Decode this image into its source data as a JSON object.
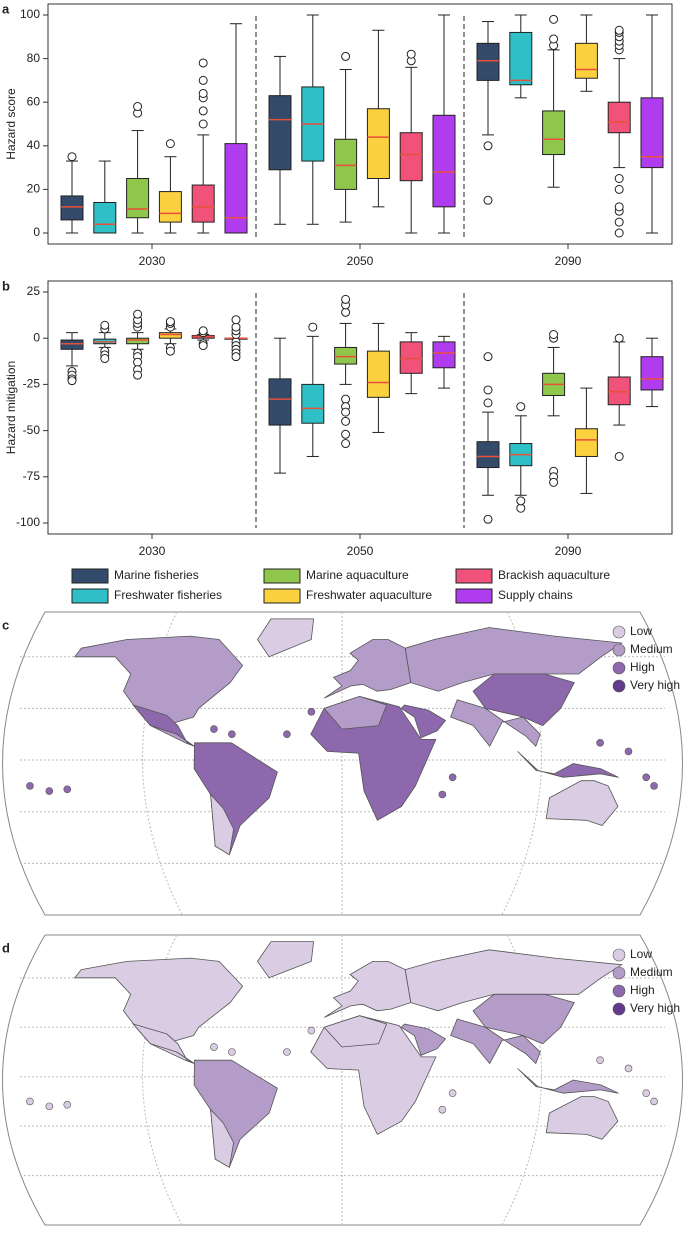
{
  "chart_data": [
    {
      "type": "box",
      "label": "a",
      "ylabel": "Hazard score",
      "categories": [
        "2030",
        "2050",
        "2090"
      ],
      "ylim": [
        0,
        100
      ],
      "yticks": [
        0,
        20,
        40,
        60,
        80,
        100
      ],
      "median_color": "#e8503a",
      "series": [
        {
          "name": "Marine fisheries",
          "color": "#344a6b",
          "boxes": [
            {
              "low": 0,
              "q1": 6,
              "median": 12,
              "q3": 17,
              "high": 33,
              "outliers": [
                35
              ]
            },
            {
              "low": 4,
              "q1": 29,
              "median": 52,
              "q3": 63,
              "high": 81,
              "outliers": []
            },
            {
              "low": 45,
              "q1": 70,
              "median": 79,
              "q3": 87,
              "high": 97,
              "outliers": [
                40,
                15
              ]
            }
          ]
        },
        {
          "name": "Freshwater fisheries",
          "color": "#2fbfc6",
          "boxes": [
            {
              "low": 0,
              "q1": 0,
              "median": 4,
              "q3": 14,
              "high": 33,
              "outliers": []
            },
            {
              "low": 4,
              "q1": 33,
              "median": 50,
              "q3": 67,
              "high": 100,
              "outliers": []
            },
            {
              "low": 62,
              "q1": 68,
              "median": 70,
              "q3": 92,
              "high": 100,
              "outliers": []
            }
          ]
        },
        {
          "name": "Marine aquaculture",
          "color": "#8fc64c",
          "boxes": [
            {
              "low": 0,
              "q1": 7,
              "median": 11,
              "q3": 25,
              "high": 47,
              "outliers": [
                55,
                58
              ]
            },
            {
              "low": 5,
              "q1": 20,
              "median": 31,
              "q3": 43,
              "high": 75,
              "outliers": [
                81
              ]
            },
            {
              "low": 21,
              "q1": 36,
              "median": 43,
              "q3": 56,
              "high": 84,
              "outliers": [
                86,
                89,
                98
              ]
            }
          ]
        },
        {
          "name": "Freshwater aquaculture",
          "color": "#fbd13f",
          "boxes": [
            {
              "low": 0,
              "q1": 5,
              "median": 9,
              "q3": 19,
              "high": 35,
              "outliers": [
                41
              ]
            },
            {
              "low": 12,
              "q1": 25,
              "median": 44,
              "q3": 57,
              "high": 93,
              "outliers": []
            },
            {
              "low": 65,
              "q1": 71,
              "median": 75,
              "q3": 87,
              "high": 100,
              "outliers": []
            }
          ]
        },
        {
          "name": "Brackish aquaculture",
          "color": "#f0527a",
          "boxes": [
            {
              "low": 0,
              "q1": 5,
              "median": 12,
              "q3": 22,
              "high": 45,
              "outliers": [
                50,
                56,
                62,
                64,
                70,
                78
              ]
            },
            {
              "low": 0,
              "q1": 24,
              "median": 36,
              "q3": 46,
              "high": 76,
              "outliers": [
                79,
                82
              ]
            },
            {
              "low": 30,
              "q1": 46,
              "median": 51,
              "q3": 60,
              "high": 80,
              "outliers": [
                0,
                5,
                10,
                12,
                20,
                25,
                84,
                86,
                88,
                90,
                92,
                93
              ]
            }
          ]
        },
        {
          "name": "Supply chains",
          "color": "#b03cf0",
          "boxes": [
            {
              "low": 0,
              "q1": 0,
              "median": 7,
              "q3": 41,
              "high": 96,
              "outliers": []
            },
            {
              "low": 0,
              "q1": 12,
              "median": 28,
              "q3": 54,
              "high": 100,
              "outliers": []
            },
            {
              "low": 0,
              "q1": 30,
              "median": 35,
              "q3": 62,
              "high": 100,
              "outliers": []
            }
          ]
        }
      ]
    },
    {
      "type": "box",
      "label": "b",
      "ylabel": "Hazard mitigation",
      "categories": [
        "2030",
        "2050",
        "2090"
      ],
      "ylim": [
        -100,
        25
      ],
      "yticks": [
        -100,
        -75,
        -50,
        -25,
        0,
        25
      ],
      "median_color": "#e8503a",
      "series": [
        {
          "color": "#344a6b",
          "boxes": [
            {
              "low": -15,
              "q1": -6,
              "median": -3,
              "q3": -1,
              "high": 3,
              "outliers": [
                -18,
                -20,
                -22,
                -23
              ]
            },
            {
              "low": -73,
              "q1": -47,
              "median": -33,
              "q3": -22,
              "high": 0,
              "outliers": []
            },
            {
              "low": -85,
              "q1": -70,
              "median": -64,
              "q3": -56,
              "high": -40,
              "outliers": [
                -98,
                -35,
                -28,
                -10
              ]
            }
          ]
        },
        {
          "color": "#2fbfc6",
          "boxes": [
            {
              "low": -5,
              "q1": -3,
              "median": -2,
              "q3": -0.5,
              "high": 3,
              "outliers": [
                -7,
                -9,
                -11,
                5,
                7
              ]
            },
            {
              "low": -64,
              "q1": -46,
              "median": -38,
              "q3": -25,
              "high": 1,
              "outliers": [
                6
              ]
            },
            {
              "low": -85,
              "q1": -69,
              "median": -63,
              "q3": -57,
              "high": -42,
              "outliers": [
                -92,
                -88,
                -37
              ]
            }
          ]
        },
        {
          "color": "#8fc64c",
          "boxes": [
            {
              "low": -6,
              "q1": -3,
              "median": -1,
              "q3": 0,
              "high": 3,
              "outliers": [
                -8,
                -10,
                -13,
                -17,
                -20,
                6,
                8,
                10,
                13
              ]
            },
            {
              "low": -25,
              "q1": -14,
              "median": -10,
              "q3": -5,
              "high": 8,
              "outliers": [
                -33,
                -37,
                -40,
                -45,
                -52,
                -57,
                14,
                18,
                21
              ]
            },
            {
              "low": -42,
              "q1": -31,
              "median": -25,
              "q3": -19,
              "high": -5,
              "outliers": [
                -72,
                -75,
                -78,
                0,
                2
              ]
            }
          ]
        },
        {
          "color": "#fbd13f",
          "boxes": [
            {
              "low": -3,
              "q1": 0,
              "median": 2,
              "q3": 3,
              "high": 5,
              "outliers": [
                -5,
                -7,
                6,
                8,
                9
              ]
            },
            {
              "low": -51,
              "q1": -32,
              "median": -24,
              "q3": -7,
              "high": 8,
              "outliers": []
            },
            {
              "low": -84,
              "q1": -64,
              "median": -55,
              "q3": -49,
              "high": -27,
              "outliers": []
            }
          ]
        },
        {
          "color": "#f0527a",
          "boxes": [
            {
              "low": -1,
              "q1": 0,
              "median": 1,
              "q3": 1.5,
              "high": 2,
              "outliers": [
                -3,
                -4,
                3,
                4
              ]
            },
            {
              "low": -30,
              "q1": -19,
              "median": -11,
              "q3": -2,
              "high": 3,
              "outliers": []
            },
            {
              "low": -47,
              "q1": -36,
              "median": -29,
              "q3": -21,
              "high": -2,
              "outliers": [
                -64,
                0
              ]
            }
          ]
        },
        {
          "color": "#b03cf0",
          "boxes": [
            {
              "low": 0,
              "q1": 0,
              "median": 0,
              "q3": 0,
              "high": 0,
              "outliers": [
                -2,
                -4,
                -6,
                -8,
                -10,
                2,
                4,
                6,
                10
              ]
            },
            {
              "low": -27,
              "q1": -16,
              "median": -8,
              "q3": -2,
              "high": 1,
              "outliers": []
            },
            {
              "low": -37,
              "q1": -28,
              "median": -22,
              "q3": -10,
              "high": 0,
              "outliers": []
            }
          ]
        }
      ]
    },
    {
      "type": "map",
      "label": "c",
      "legend": [
        {
          "label": "Low",
          "color": "#d9cce3"
        },
        {
          "label": "Medium",
          "color": "#b39cc8"
        },
        {
          "label": "High",
          "color": "#8e68ad"
        },
        {
          "label": "Very high",
          "color": "#643a8a"
        }
      ]
    },
    {
      "type": "map",
      "label": "d",
      "legend": [
        {
          "label": "Low",
          "color": "#d9cce3"
        },
        {
          "label": "Medium",
          "color": "#b39cc8"
        },
        {
          "label": "High",
          "color": "#8e68ad"
        },
        {
          "label": "Very high",
          "color": "#643a8a"
        }
      ]
    }
  ]
}
